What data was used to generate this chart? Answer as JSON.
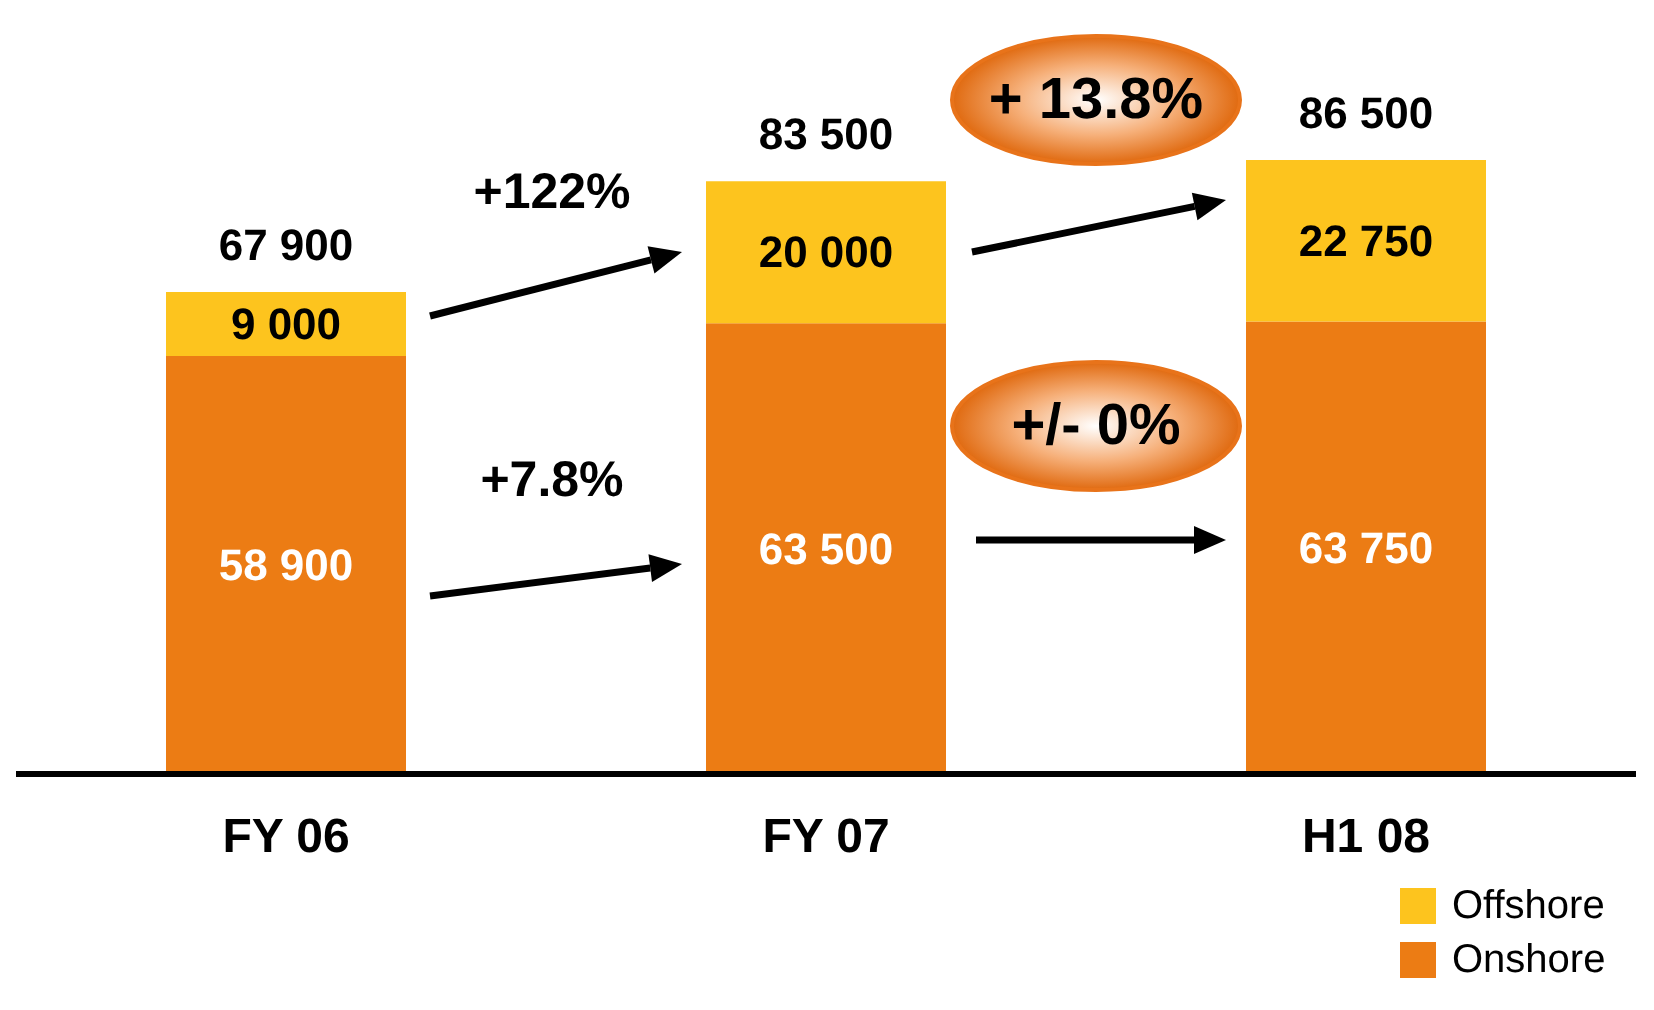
{
  "chart_data": {
    "type": "bar",
    "stacked": true,
    "categories": [
      "FY 06",
      "FY 07",
      "H1 08"
    ],
    "series": [
      {
        "name": "Onshore",
        "color": "#ec7c14",
        "values": [
          58900,
          63500,
          63750
        ],
        "value_labels": [
          "58 900",
          "63 500",
          "63 750"
        ]
      },
      {
        "name": "Offshore",
        "color": "#fdc41e",
        "values": [
          9000,
          20000,
          22750
        ],
        "value_labels": [
          "9 000",
          "20 000",
          "22 750"
        ]
      }
    ],
    "totals": [
      "67 900",
      "83 500",
      "86 500"
    ],
    "annotations": [
      "+122%",
      "+7.8%",
      "+ 13.8%",
      "+/- 0%"
    ],
    "legend": "bottom right"
  }
}
